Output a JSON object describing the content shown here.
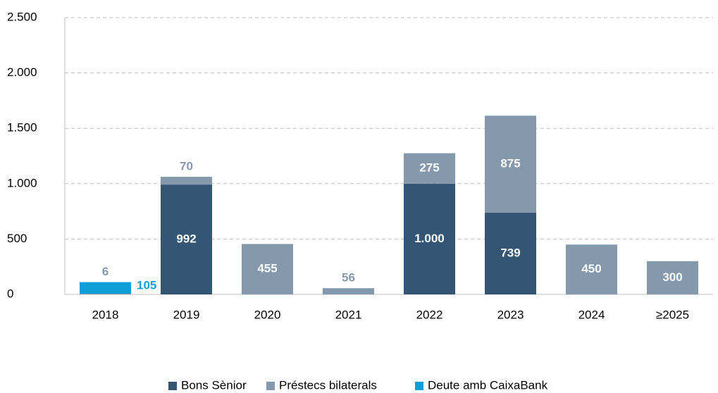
{
  "chart_data": {
    "type": "bar",
    "categories": [
      "2018",
      "2019",
      "2020",
      "2021",
      "2022",
      "2023",
      "2024",
      "≥2025"
    ],
    "series": [
      {
        "name": "Bons Sènior",
        "color": "#345674",
        "values": [
          null,
          992,
          null,
          null,
          1000,
          739,
          null,
          null
        ],
        "value_labels": [
          null,
          "992",
          null,
          null,
          "1.000",
          "739",
          null,
          null
        ]
      },
      {
        "name": "Préstecs bilaterals",
        "color": "#8499ab",
        "values": [
          6,
          70,
          455,
          56,
          275,
          875,
          450,
          300
        ]
      },
      {
        "name": "Deute amb CaixaBank",
        "color": "#0f9ed5",
        "values": [
          105,
          null,
          null,
          null,
          null,
          null,
          null,
          null
        ]
      }
    ],
    "ylim": [
      0,
      2500
    ],
    "yticks": [
      0,
      500,
      {
        "value": 1000,
        "label": "1.000"
      },
      {
        "value": 1500,
        "label": "1.500"
      },
      {
        "value": 2000,
        "label": "2.000"
      },
      {
        "value": 2500,
        "label": "2.500"
      }
    ],
    "grid": true,
    "legend": "bottom",
    "stacked": true
  }
}
